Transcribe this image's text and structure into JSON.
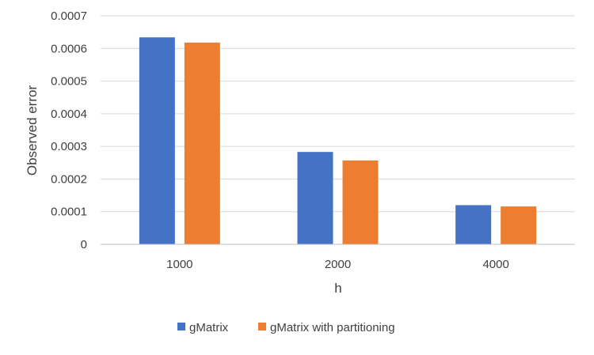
{
  "chart_data": {
    "type": "bar",
    "title": "",
    "xlabel": "h",
    "ylabel": "Observed error",
    "categories": [
      "1000",
      "2000",
      "4000"
    ],
    "series": [
      {
        "name": "gMatrix",
        "color": "#4472C4",
        "values": [
          0.000634,
          0.000283,
          0.00012
        ]
      },
      {
        "name": "gMatrix with partitioning",
        "color": "#ED7D31",
        "values": [
          0.000618,
          0.000257,
          0.000116
        ]
      }
    ],
    "ylim": [
      0,
      0.0007
    ],
    "yticks": [
      "0",
      "0.0001",
      "0.0002",
      "0.0003",
      "0.0004",
      "0.0005",
      "0.0006",
      "0.0007"
    ],
    "grid": true,
    "legend_position": "bottom"
  }
}
